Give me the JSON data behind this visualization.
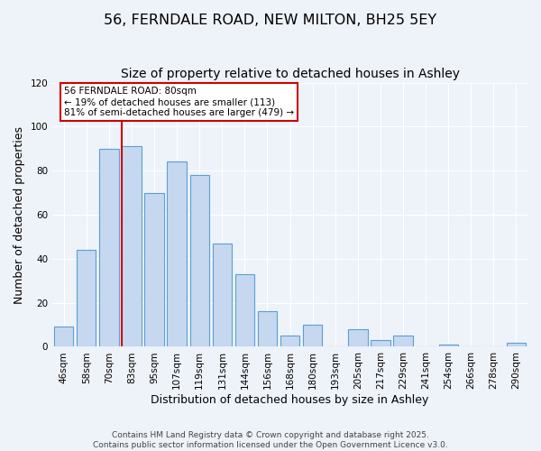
{
  "title": "56, FERNDALE ROAD, NEW MILTON, BH25 5EY",
  "subtitle": "Size of property relative to detached houses in Ashley",
  "xlabel": "Distribution of detached houses by size in Ashley",
  "ylabel": "Number of detached properties",
  "bin_labels": [
    "46sqm",
    "58sqm",
    "70sqm",
    "83sqm",
    "95sqm",
    "107sqm",
    "119sqm",
    "131sqm",
    "144sqm",
    "156sqm",
    "168sqm",
    "180sqm",
    "193sqm",
    "205sqm",
    "217sqm",
    "229sqm",
    "241sqm",
    "254sqm",
    "266sqm",
    "278sqm",
    "290sqm"
  ],
  "bar_heights": [
    9,
    44,
    90,
    91,
    70,
    84,
    78,
    47,
    33,
    16,
    5,
    10,
    0,
    8,
    3,
    5,
    0,
    1,
    0,
    0,
    2
  ],
  "bar_color": "#c5d8f0",
  "bar_edge_color": "#5a9fd4",
  "ylim": [
    0,
    120
  ],
  "yticks": [
    0,
    20,
    40,
    60,
    80,
    100,
    120
  ],
  "vline_color": "#cc0000",
  "vline_index": 3,
  "annotation_text": "56 FERNDALE ROAD: 80sqm\n← 19% of detached houses are smaller (113)\n81% of semi-detached houses are larger (479) →",
  "annotation_box_color": "#ffffff",
  "annotation_box_edge_color": "#cc0000",
  "footer_text": "Contains HM Land Registry data © Crown copyright and database right 2025.\nContains public sector information licensed under the Open Government Licence v3.0.",
  "background_color": "#eef2f9",
  "grid_color": "#ffffff",
  "title_fontsize": 11.5,
  "subtitle_fontsize": 10,
  "axis_label_fontsize": 9,
  "tick_fontsize": 7.5,
  "annotation_fontsize": 7.5,
  "footer_fontsize": 6.5
}
